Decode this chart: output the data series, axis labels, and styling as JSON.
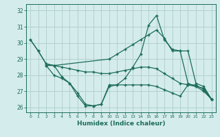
{
  "xlabel": "Humidex (Indice chaleur)",
  "background_color": "#d5ecec",
  "grid_color": "#b0d0d0",
  "line_color": "#1a6b5a",
  "xlim": [
    -0.5,
    23.5
  ],
  "ylim": [
    25.7,
    32.4
  ],
  "yticks": [
    26,
    27,
    28,
    29,
    30,
    31,
    32
  ],
  "xticks": [
    0,
    1,
    2,
    3,
    4,
    5,
    6,
    7,
    8,
    9,
    10,
    11,
    12,
    13,
    14,
    15,
    16,
    17,
    18,
    19,
    20,
    21,
    22,
    23
  ],
  "lines": [
    {
      "x": [
        0,
        1,
        2,
        3,
        10,
        11,
        12,
        13,
        14,
        15,
        16,
        17,
        18,
        19,
        20,
        21,
        22,
        23
      ],
      "y": [
        30.2,
        29.5,
        28.7,
        28.6,
        29.0,
        29.3,
        29.6,
        29.9,
        30.2,
        30.5,
        30.8,
        30.3,
        29.5,
        29.5,
        29.5,
        27.5,
        27.3,
        26.5
      ]
    },
    {
      "x": [
        0,
        1,
        2,
        3,
        4,
        5,
        6,
        7,
        8,
        9,
        10,
        11,
        12,
        13,
        14,
        15,
        16,
        17,
        18,
        19,
        20,
        21,
        22,
        23
      ],
      "y": [
        30.2,
        29.5,
        28.7,
        28.6,
        27.9,
        27.5,
        26.7,
        26.1,
        26.1,
        26.2,
        27.3,
        27.4,
        27.8,
        28.5,
        29.3,
        31.1,
        31.7,
        30.2,
        29.6,
        29.5,
        27.5,
        27.3,
        27.0,
        26.5
      ]
    },
    {
      "x": [
        2,
        3,
        4,
        5,
        6,
        7,
        8,
        9,
        10,
        11,
        12,
        13,
        14,
        15,
        16,
        17,
        18,
        19,
        20,
        21,
        22,
        23
      ],
      "y": [
        28.6,
        28.6,
        28.5,
        28.4,
        28.3,
        28.2,
        28.2,
        28.1,
        28.1,
        28.2,
        28.3,
        28.4,
        28.5,
        28.5,
        28.4,
        28.1,
        27.8,
        27.5,
        27.4,
        27.3,
        27.2,
        26.5
      ]
    },
    {
      "x": [
        2,
        3,
        4,
        5,
        6,
        7,
        8,
        9,
        10,
        11,
        12,
        13,
        14,
        15,
        16,
        17,
        18,
        19,
        20,
        21,
        22,
        23
      ],
      "y": [
        28.6,
        28.0,
        27.8,
        27.5,
        26.9,
        26.2,
        26.1,
        26.2,
        27.4,
        27.4,
        27.4,
        27.4,
        27.4,
        27.4,
        27.3,
        27.1,
        26.9,
        26.7,
        27.4,
        27.4,
        27.1,
        26.5
      ]
    }
  ]
}
